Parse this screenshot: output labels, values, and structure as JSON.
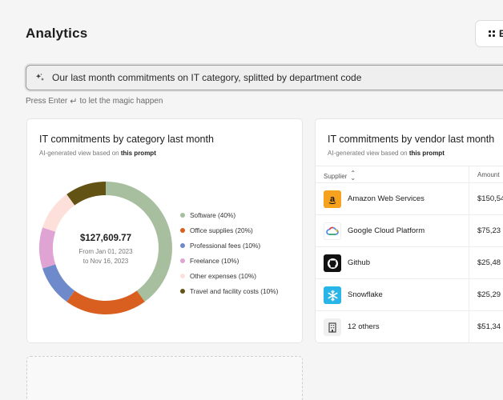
{
  "page": {
    "title": "Analytics"
  },
  "top_button": {
    "label": "E"
  },
  "prompt": {
    "value": "Our last month commitments on IT category, splitted by department code",
    "hint_prefix": "Press Enter",
    "hint_suffix": "to let the magic happen"
  },
  "category_card": {
    "title": "IT commitments by category last month",
    "subtitle": "AI-generated view based on",
    "subtitle_link": "this prompt",
    "total": "$127,609.77",
    "date_from": "From Jan 01, 2023",
    "date_to": "to Nov 16, 2023"
  },
  "chart_data": {
    "type": "pie",
    "title": "IT commitments by category last month",
    "series": [
      {
        "name": "Software (40%)",
        "value": 40,
        "color": "#a8bf9f"
      },
      {
        "name": "Office supplies (20%)",
        "value": 20,
        "color": "#d85f1f"
      },
      {
        "name": "Professional fees (10%)",
        "value": 10,
        "color": "#6f8acb"
      },
      {
        "name": "Freelance (10%)",
        "value": 10,
        "color": "#dfa4d4"
      },
      {
        "name": "Other expenses (10%)",
        "value": 10,
        "color": "#fde0da"
      },
      {
        "name": "Travel and facility costs (10%)",
        "value": 10,
        "color": "#625314"
      }
    ]
  },
  "vendor_card": {
    "title": "IT commitments by vendor last month",
    "subtitle": "AI-generated view based on",
    "subtitle_link": "this prompt",
    "columns": {
      "supplier": "Supplier",
      "amount": "Amount"
    },
    "rows": [
      {
        "name": "Amazon Web Services",
        "amount": "$150,54",
        "icon": "amazon-icon"
      },
      {
        "name": "Google Cloud Platform",
        "amount": "$75,23",
        "icon": "google-cloud-icon"
      },
      {
        "name": "Github",
        "amount": "$25,48",
        "icon": "github-icon"
      },
      {
        "name": "Snowflake",
        "amount": "$25,29",
        "icon": "snowflake-icon"
      },
      {
        "name": "12 others",
        "amount": "$51,34",
        "icon": "building-icon"
      }
    ]
  }
}
